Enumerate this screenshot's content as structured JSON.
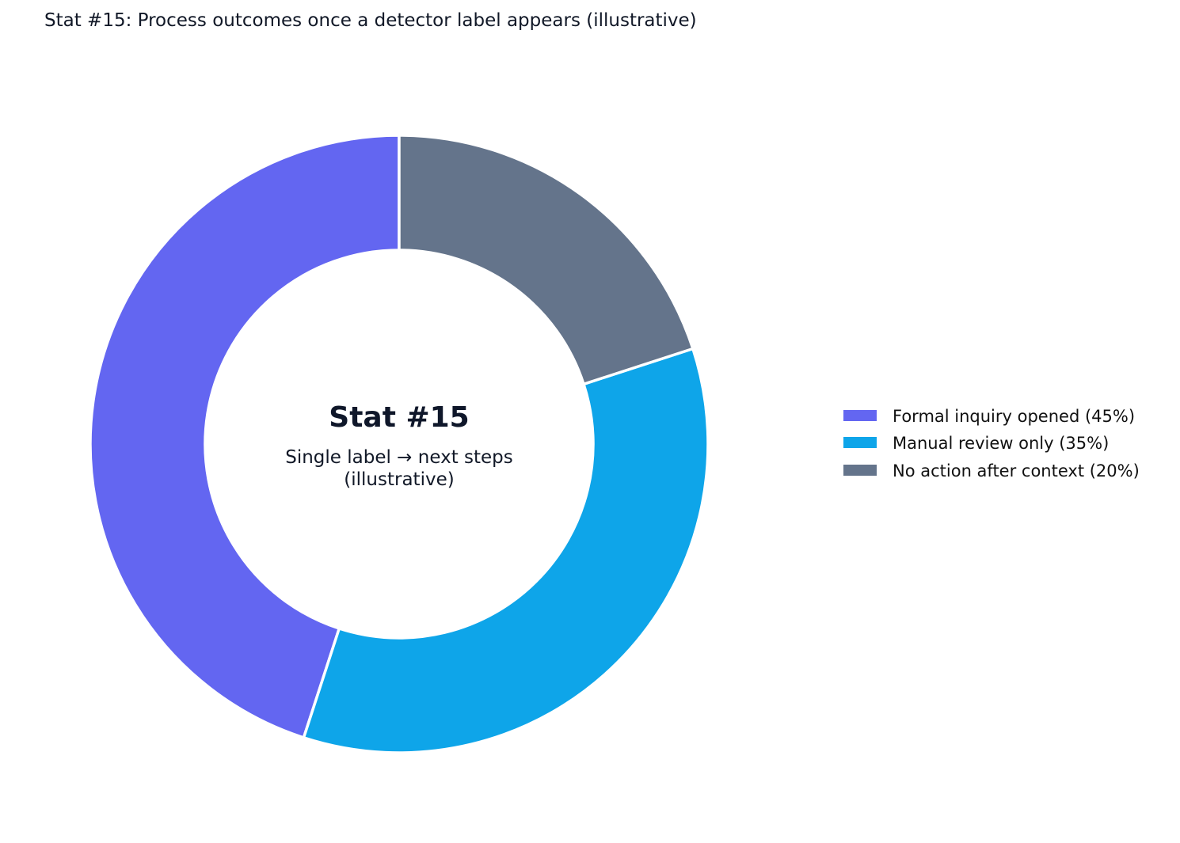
{
  "chart_data": {
    "type": "pie",
    "title": "Stat #15: Process outcomes once a detector label appears (illustrative)",
    "donut": true,
    "center_text": {
      "title": "Stat #15",
      "subtitle_lines": [
        "Single label → next steps",
        "(illustrative)"
      ]
    },
    "start_angle": "top",
    "direction": "counterclockwise",
    "slices": [
      {
        "label": "Formal inquiry opened (45%)",
        "value": 45,
        "color": "#6366F1"
      },
      {
        "label": "Manual review only (35%)",
        "value": 35,
        "color": "#0EA5E9"
      },
      {
        "label": "No action after context (20%)",
        "value": 20,
        "color": "#64748B"
      }
    ],
    "legend": "right"
  }
}
